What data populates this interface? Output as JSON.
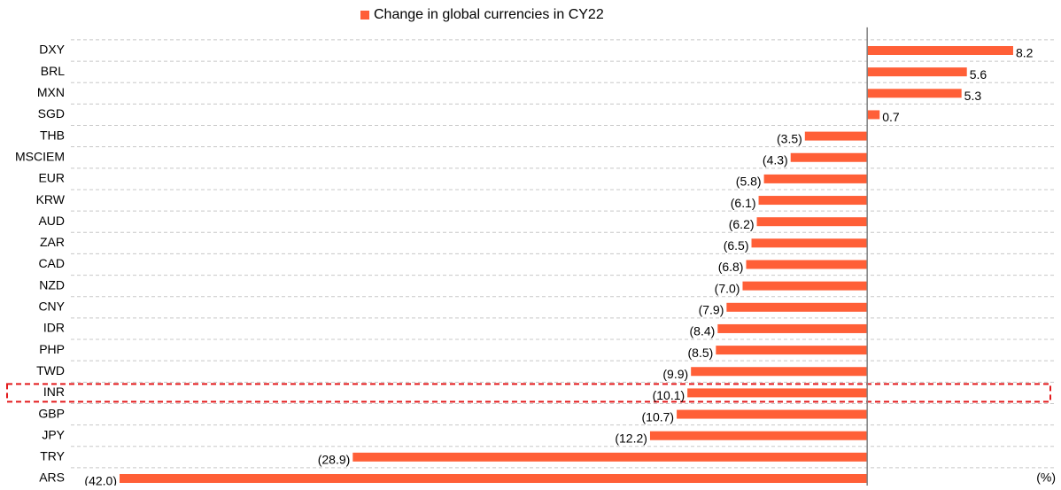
{
  "chart_data": {
    "type": "hbar",
    "categories": [
      "DXY",
      "BRL",
      "MXN",
      "SGD",
      "THB",
      "MSCIEM",
      "EUR",
      "KRW",
      "AUD",
      "ZAR",
      "CAD",
      "NZD",
      "CNY",
      "IDR",
      "PHP",
      "TWD",
      "INR",
      "GBP",
      "JPY",
      "TRY",
      "ARS"
    ],
    "series": [
      {
        "name": "Change in global currencies in CY22",
        "color": "#ff5f37",
        "values": [
          8.2,
          5.6,
          5.3,
          0.7,
          -3.5,
          -4.3,
          -5.8,
          -6.1,
          -6.2,
          -6.5,
          -6.8,
          -7.0,
          -7.9,
          -8.4,
          -8.5,
          -9.9,
          -10.1,
          -10.7,
          -12.2,
          -28.9,
          -42.0
        ],
        "value_labels": [
          "8.2",
          "5.6",
          "5.3",
          "0.7",
          "(3.5)",
          "(4.3)",
          "(5.8)",
          "(6.1)",
          "(6.2)",
          "(6.5)",
          "(6.8)",
          "(7.0)",
          "(7.9)",
          "(8.4)",
          "(8.5)",
          "(9.9)",
          "(10.1)",
          "(10.7)",
          "(12.2)",
          "(28.9)",
          "(42.0)"
        ]
      }
    ],
    "xlim": [
      -42,
      8.5
    ],
    "x_unit_label": "(%)",
    "highlight": "INR",
    "grid": true,
    "legend": "top"
  }
}
